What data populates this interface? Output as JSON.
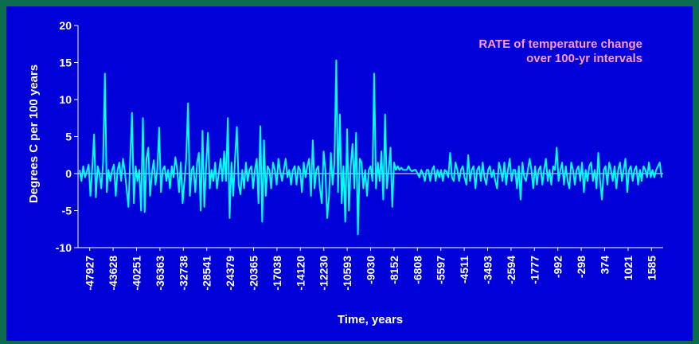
{
  "chart_data": {
    "type": "line",
    "annotation": [
      "RATE of temperature change",
      "over 100-yr intervals"
    ],
    "ylabel": "Degrees C per 100 years",
    "xlabel": "Time, years",
    "ylim": [
      -10,
      20
    ],
    "yticks": [
      "20",
      "15",
      "10",
      "5",
      "0",
      "-5",
      "-10"
    ],
    "x_tick_labels": [
      "-47927",
      "-43628",
      "-40251",
      "-36363",
      "-32738",
      "-28541",
      "-24379",
      "-20365",
      "-17038",
      "-14120",
      "-12230",
      "-10593",
      "-9030",
      "-8152",
      "-6808",
      "-5597",
      "-4511",
      "-3493",
      "-2594",
      "-1777",
      "-992",
      "-298",
      "374",
      "1021",
      "1585"
    ],
    "grid": false,
    "series": [
      {
        "color": "#00ffff",
        "values": [
          0.5,
          -1,
          1,
          -0.5,
          0.3,
          1.2,
          -3,
          0.8,
          5.3,
          -3.2,
          1,
          0,
          -2,
          1.5,
          13.5,
          -2.5,
          0.5,
          -1,
          0.5,
          1.2,
          -3,
          0.5,
          1.5,
          -1,
          2,
          0.3,
          -2,
          -4.5,
          2,
          8.2,
          -4,
          1,
          -1,
          0.5,
          -5,
          7.5,
          -5.2,
          2,
          3.5,
          -3,
          0,
          1.8,
          -1.5,
          0.5,
          6.2,
          -2.5,
          0.5,
          1,
          -1,
          0.5,
          -2,
          1,
          -0.5,
          2.2,
          0.5,
          -2.5,
          1.5,
          -4,
          -1,
          2,
          9.5,
          -3,
          0.5,
          1,
          -2.5,
          1.5,
          2.8,
          -5,
          5.8,
          -4.5,
          1,
          5.5,
          -2,
          0.5,
          -1,
          1.5,
          -2,
          0,
          2,
          -1,
          3,
          -1,
          7.5,
          -6,
          1.5,
          -3,
          2,
          6.3,
          -1.5,
          -2.8,
          0.5,
          -2,
          1.5,
          -1,
          0.5,
          1,
          -2,
          0.5,
          2,
          -4,
          6.4,
          -6.5,
          4.5,
          -3,
          1,
          0.5,
          -2,
          1.5,
          0.5,
          -1.5,
          2,
          0.3,
          -1,
          0.5,
          2,
          -0.5,
          0.5,
          -1.5,
          0.5,
          1,
          -1.5,
          1,
          0.5,
          -2.5,
          1.5,
          -0.5,
          1,
          2,
          -3,
          4.5,
          -2,
          0.5,
          1,
          -2,
          -4,
          3,
          0.5,
          -6,
          -3,
          2.8,
          -1.5,
          1.5,
          15.3,
          -2.5,
          8,
          -4,
          1,
          -6.5,
          6,
          -5,
          1,
          4,
          -2,
          5.5,
          -8.2,
          2,
          1.5,
          -2,
          0.5,
          -3,
          0.5,
          1,
          -1,
          13.5,
          -2,
          1.5,
          -1,
          3,
          -3.5,
          8,
          -2,
          0.5,
          3.5,
          -4.5,
          1.5,
          0.5,
          1,
          0.5,
          0.8,
          0.5,
          0.5,
          0.5,
          1,
          0.5,
          0.3,
          0.5,
          0.5,
          0,
          -0.5,
          0.5,
          0,
          -1,
          0.5,
          0.5,
          -1,
          0.5,
          1,
          -1,
          0.5,
          -0.5,
          0.5,
          -1,
          0.5,
          0.3,
          -0.5,
          2.8,
          -0.5,
          -1,
          1.5,
          0.5,
          -1,
          0.5,
          1,
          -0.5,
          -1.5,
          2.5,
          -1,
          0.5,
          1,
          -2,
          0.5,
          1,
          -1,
          1.5,
          -0.5,
          -1.5,
          0.5,
          1,
          -0.5,
          0.5,
          -1,
          -2,
          1.5,
          0.5,
          -1,
          1.5,
          -1.5,
          0.5,
          2,
          -1,
          0.5,
          0.5,
          -2,
          1,
          -3.5,
          1.5,
          -0.5,
          -1,
          0.5,
          2,
          0.5,
          -2,
          1,
          -1.5,
          0.5,
          1,
          -1.5,
          0.5,
          2,
          -1,
          0.5,
          -1.5,
          1,
          0.5,
          3.5,
          -1,
          0.5,
          1.5,
          -1.5,
          1,
          -1,
          -2,
          1.5,
          0.5,
          -1.5,
          0.5,
          1,
          -1,
          1.5,
          -2.5,
          0.5,
          -1,
          1,
          1.5,
          -1,
          0.5,
          -2,
          2.8,
          -1,
          -3.5,
          0.5,
          1,
          -1.5,
          1.5,
          0.5,
          -1,
          1,
          -2,
          0.5,
          1.5,
          -1,
          0.5,
          2,
          -2.5,
          0.5,
          1,
          -1,
          0.5,
          1,
          -1.5,
          0.5,
          -1,
          1,
          0.5,
          -0.5,
          1.5,
          -0.5,
          0.5,
          -0.5,
          0.5,
          1,
          1.5,
          -0.5
        ]
      }
    ]
  }
}
